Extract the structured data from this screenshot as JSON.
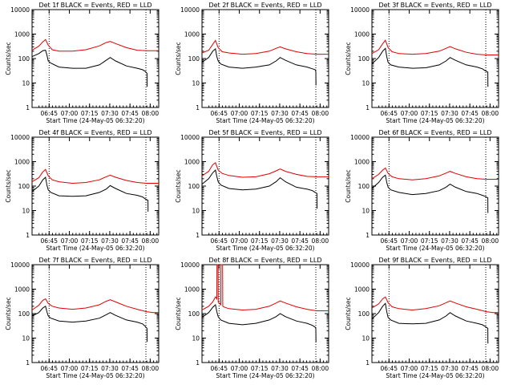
{
  "page": {
    "label": "Det 1f-9f BLACK = Events, RED = LLD"
  },
  "common": {
    "ylabel": "Counts/sec",
    "xlabel": "Start Time (24-May-05 06:32:20)",
    "xticks": [
      "06:45",
      "07:00",
      "07:15",
      "07:30",
      "07:45",
      "08:00"
    ],
    "xtick_minutes": [
      12.67,
      27.67,
      42.67,
      57.67,
      72.67,
      87.67
    ],
    "yticks": [
      "1",
      "10",
      "100",
      "1000",
      "10000"
    ],
    "colors": {
      "events": "#000000",
      "lld": "#e00000"
    }
  },
  "chart_data": [
    {
      "type": "line",
      "title": "Det 1f BLACK = Events, RED = LLD",
      "ylabel": "Counts/sec",
      "xlabel": "Start Time (24-May-05 06:32:20)",
      "ylim": [
        1,
        10000
      ],
      "yscale": "log",
      "xlim_minutes": [
        0,
        94
      ],
      "markers_minutes": [
        12.67,
        84.5
      ],
      "series": [
        {
          "name": "Events",
          "color": "#000000",
          "x": [
            0,
            5,
            8,
            10,
            11,
            12,
            14,
            20,
            30,
            40,
            50,
            55,
            58,
            62,
            70,
            78,
            82,
            84,
            85.3,
            85.4
          ],
          "y": [
            120,
            160,
            210,
            220,
            140,
            80,
            65,
            45,
            40,
            40,
            55,
            85,
            110,
            80,
            50,
            40,
            35,
            30,
            25,
            7
          ]
        },
        {
          "name": "LLD",
          "color": "#e00000",
          "x": [
            0,
            5,
            8,
            10,
            12,
            15,
            20,
            30,
            40,
            50,
            55,
            58,
            62,
            70,
            78,
            85,
            90,
            94
          ],
          "y": [
            220,
            320,
            480,
            600,
            350,
            230,
            200,
            200,
            230,
            330,
            450,
            500,
            410,
            280,
            220,
            210,
            210,
            210
          ]
        }
      ]
    },
    {
      "type": "line",
      "title": "Det 2f BLACK = Events, RED = LLD",
      "ylabel": "Counts/sec",
      "xlabel": "Start Time (24-May-05 06:32:20)",
      "ylim": [
        1,
        10000
      ],
      "yscale": "log",
      "xlim_minutes": [
        0,
        94
      ],
      "markers_minutes": [
        12.67,
        84.5
      ],
      "series": [
        {
          "name": "Events",
          "color": "#000000",
          "x": [
            0,
            5,
            8,
            10,
            11,
            12,
            14,
            20,
            30,
            40,
            50,
            55,
            58,
            62,
            70,
            78,
            82,
            84,
            84.5,
            84.6
          ],
          "y": [
            70,
            110,
            200,
            250,
            120,
            80,
            60,
            45,
            40,
            45,
            55,
            80,
            110,
            85,
            55,
            45,
            38,
            35,
            30,
            8
          ]
        },
        {
          "name": "LLD",
          "color": "#e00000",
          "x": [
            0,
            5,
            8,
            10,
            12,
            15,
            20,
            30,
            40,
            50,
            55,
            58,
            62,
            70,
            78,
            85,
            90,
            94
          ],
          "y": [
            170,
            220,
            380,
            550,
            280,
            190,
            170,
            150,
            160,
            200,
            260,
            300,
            250,
            190,
            160,
            150,
            150,
            150
          ]
        }
      ]
    },
    {
      "type": "line",
      "title": "Det 3f BLACK = Events, RED = LLD",
      "ylabel": "Counts/sec",
      "xlabel": "Start Time (24-May-05 06:32:20)",
      "ylim": [
        1,
        10000
      ],
      "yscale": "log",
      "xlim_minutes": [
        0,
        94
      ],
      "markers_minutes": [
        12.67,
        84.5
      ],
      "series": [
        {
          "name": "Events",
          "color": "#000000",
          "x": [
            0,
            5,
            8,
            10,
            11,
            12,
            14,
            20,
            30,
            40,
            50,
            55,
            58,
            62,
            70,
            78,
            82,
            84,
            86,
            86.1
          ],
          "y": [
            60,
            110,
            200,
            260,
            120,
            70,
            55,
            45,
            40,
            42,
            55,
            80,
            110,
            85,
            55,
            45,
            38,
            32,
            28,
            7
          ]
        },
        {
          "name": "LLD",
          "color": "#e00000",
          "x": [
            0,
            5,
            8,
            10,
            12,
            15,
            20,
            30,
            40,
            50,
            55,
            58,
            62,
            70,
            78,
            85,
            90,
            94
          ],
          "y": [
            160,
            230,
            400,
            560,
            280,
            190,
            160,
            150,
            160,
            200,
            260,
            310,
            250,
            180,
            150,
            140,
            140,
            140
          ]
        }
      ]
    },
    {
      "type": "line",
      "title": "Det 4f BLACK = Events, RED = LLD",
      "ylabel": "Counts/sec",
      "xlabel": "Start Time (24-May-05 06:32:20)",
      "ylim": [
        1,
        10000
      ],
      "yscale": "log",
      "xlim_minutes": [
        0,
        94
      ],
      "markers_minutes": [
        12.67,
        84.5
      ],
      "series": [
        {
          "name": "Events",
          "color": "#000000",
          "x": [
            0,
            5,
            8,
            10,
            11,
            12,
            14,
            20,
            30,
            40,
            50,
            55,
            58,
            62,
            70,
            78,
            82,
            84,
            86,
            86.1
          ],
          "y": [
            60,
            100,
            180,
            230,
            110,
            70,
            55,
            40,
            38,
            40,
            55,
            75,
            105,
            80,
            50,
            42,
            36,
            30,
            26,
            9
          ]
        },
        {
          "name": "LLD",
          "color": "#e00000",
          "x": [
            0,
            5,
            8,
            10,
            12,
            15,
            20,
            30,
            40,
            50,
            55,
            58,
            62,
            70,
            78,
            85,
            90,
            94
          ],
          "y": [
            150,
            220,
            380,
            480,
            260,
            180,
            150,
            130,
            140,
            180,
            240,
            280,
            230,
            170,
            140,
            130,
            130,
            130
          ]
        }
      ]
    },
    {
      "type": "line",
      "title": "Det 5f BLACK = Events, RED = LLD",
      "ylabel": "Counts/sec",
      "xlabel": "Start Time (24-May-05 06:32:20)",
      "ylim": [
        1,
        10000
      ],
      "yscale": "log",
      "xlim_minutes": [
        0,
        94
      ],
      "markers_minutes": [
        12.67,
        84.5
      ],
      "series": [
        {
          "name": "Events",
          "color": "#000000",
          "x": [
            0,
            5,
            8,
            10,
            11,
            12,
            14,
            20,
            30,
            40,
            50,
            55,
            58,
            62,
            70,
            78,
            82,
            84,
            85.3,
            85.4
          ],
          "y": [
            120,
            200,
            350,
            450,
            250,
            150,
            110,
            80,
            70,
            75,
            100,
            150,
            220,
            150,
            90,
            75,
            65,
            55,
            50,
            12
          ]
        },
        {
          "name": "LLD",
          "color": "#e00000",
          "x": [
            0,
            5,
            8,
            10,
            12,
            15,
            20,
            30,
            40,
            50,
            55,
            58,
            62,
            70,
            78,
            85,
            90,
            94
          ],
          "y": [
            260,
            400,
            750,
            900,
            450,
            330,
            270,
            230,
            240,
            320,
            420,
            500,
            400,
            300,
            250,
            240,
            240,
            240
          ]
        }
      ]
    },
    {
      "type": "line",
      "title": "Det 6f BLACK = Events, RED = LLD",
      "ylabel": "Counts/sec",
      "xlabel": "Start Time (24-May-05 06:32:20)",
      "ylim": [
        1,
        10000
      ],
      "yscale": "log",
      "xlim_minutes": [
        0,
        94
      ],
      "markers_minutes": [
        12.67,
        84.5
      ],
      "series": [
        {
          "name": "Events",
          "color": "#000000",
          "x": [
            0,
            5,
            8,
            10,
            11,
            12,
            14,
            20,
            30,
            40,
            50,
            55,
            58,
            62,
            70,
            78,
            82,
            84,
            86,
            86.1
          ],
          "y": [
            80,
            140,
            230,
            280,
            140,
            90,
            70,
            55,
            45,
            50,
            65,
            90,
            120,
            90,
            60,
            50,
            42,
            38,
            33,
            8
          ]
        },
        {
          "name": "LLD",
          "color": "#e00000",
          "x": [
            0,
            5,
            8,
            10,
            12,
            15,
            20,
            30,
            40,
            50,
            55,
            58,
            62,
            70,
            78,
            85,
            90,
            94
          ],
          "y": [
            200,
            300,
            450,
            550,
            330,
            240,
            200,
            180,
            200,
            260,
            340,
            400,
            330,
            240,
            200,
            190,
            190,
            190
          ]
        }
      ]
    },
    {
      "type": "line",
      "title": "Det 7f BLACK = Events, RED = LLD",
      "ylabel": "Counts/sec",
      "xlabel": "Start Time (24-May-05 06:32:20)",
      "ylim": [
        1,
        10000
      ],
      "yscale": "log",
      "xlim_minutes": [
        0,
        94
      ],
      "markers_minutes": [
        12.67,
        84.5
      ],
      "series": [
        {
          "name": "Events",
          "color": "#000000",
          "x": [
            0,
            5,
            8,
            10,
            11,
            12,
            14,
            20,
            30,
            40,
            50,
            55,
            58,
            62,
            70,
            78,
            82,
            84,
            85.3,
            85.4
          ],
          "y": [
            80,
            110,
            170,
            200,
            120,
            80,
            65,
            50,
            45,
            50,
            65,
            90,
            110,
            85,
            55,
            45,
            38,
            30,
            25,
            7
          ]
        },
        {
          "name": "LLD",
          "color": "#e00000",
          "x": [
            0,
            5,
            8,
            10,
            12,
            15,
            20,
            30,
            40,
            50,
            55,
            58,
            62,
            70,
            78,
            85,
            90,
            94
          ],
          "y": [
            140,
            220,
            350,
            400,
            260,
            200,
            170,
            150,
            170,
            230,
            320,
            370,
            300,
            200,
            150,
            120,
            110,
            110
          ]
        }
      ]
    },
    {
      "type": "line",
      "title": "Det 8f BLACK = Events, RED = LLD",
      "ylabel": "Counts/sec",
      "xlabel": "Start Time (24-May-05 06:32:20)",
      "ylim": [
        1,
        10000
      ],
      "yscale": "log",
      "xlim_minutes": [
        0,
        94
      ],
      "markers_minutes": [
        12.67,
        84.5
      ],
      "series": [
        {
          "name": "Events",
          "color": "#000000",
          "x": [
            0,
            5,
            8,
            10,
            11,
            12,
            14,
            20,
            30,
            40,
            50,
            55,
            58,
            62,
            70,
            78,
            82,
            84,
            84.5,
            84.6
          ],
          "y": [
            70,
            110,
            180,
            230,
            120,
            75,
            55,
            40,
            35,
            40,
            55,
            75,
            100,
            75,
            50,
            40,
            33,
            28,
            25,
            7
          ]
        },
        {
          "name": "LLD",
          "color": "#e00000",
          "x": [
            0,
            5,
            8,
            10,
            11,
            11.1,
            11.9,
            12,
            14,
            14.1,
            15.3,
            15.4,
            17,
            20,
            30,
            40,
            50,
            55,
            58,
            62,
            70,
            78,
            85,
            90,
            94
          ],
          "y": [
            140,
            200,
            300,
            480,
            400,
            10000,
            10000,
            300,
            230,
            10000,
            10000,
            200,
            180,
            160,
            140,
            150,
            200,
            270,
            330,
            270,
            190,
            150,
            130,
            130,
            130
          ]
        }
      ]
    },
    {
      "type": "line",
      "title": "Det 9f BLACK = Events, RED = LLD",
      "ylabel": "Counts/sec",
      "xlabel": "Start Time (24-May-05 06:32:20)",
      "ylim": [
        1,
        10000
      ],
      "yscale": "log",
      "xlim_minutes": [
        0,
        94
      ],
      "markers_minutes": [
        12.67,
        84.5
      ],
      "series": [
        {
          "name": "Events",
          "color": "#000000",
          "x": [
            0,
            5,
            8,
            10,
            11,
            12,
            14,
            20,
            30,
            40,
            50,
            55,
            58,
            62,
            70,
            78,
            82,
            84,
            86,
            86.1
          ],
          "y": [
            60,
            110,
            200,
            260,
            120,
            70,
            55,
            40,
            38,
            40,
            55,
            80,
            110,
            80,
            50,
            40,
            35,
            30,
            25,
            6
          ]
        },
        {
          "name": "LLD",
          "color": "#e00000",
          "x": [
            0,
            5,
            8,
            10,
            12,
            15,
            20,
            30,
            40,
            50,
            55,
            58,
            62,
            70,
            78,
            85,
            90,
            94
          ],
          "y": [
            170,
            250,
            400,
            480,
            280,
            190,
            160,
            140,
            160,
            210,
            280,
            330,
            270,
            190,
            150,
            120,
            110,
            110
          ]
        }
      ]
    }
  ]
}
